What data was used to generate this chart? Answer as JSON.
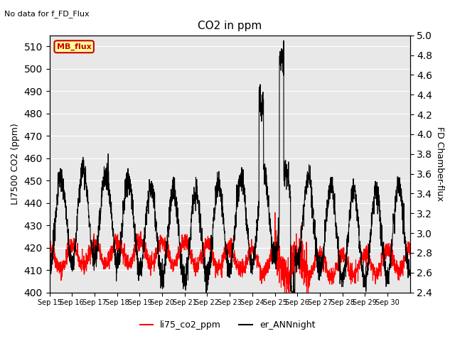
{
  "title": "CO2 in ppm",
  "subtitle": "No data for f_FD_Flux",
  "ylabel_left": "LI7500 CO2 (ppm)",
  "ylabel_right": "FD Chamber-flux",
  "ylim_left": [
    400,
    515
  ],
  "ylim_right": [
    2.4,
    5.0
  ],
  "yticks_left": [
    400,
    410,
    420,
    430,
    440,
    450,
    460,
    470,
    480,
    490,
    500,
    510
  ],
  "yticks_right": [
    2.4,
    2.6,
    2.8,
    3.0,
    3.2,
    3.4,
    3.6,
    3.8,
    4.0,
    4.2,
    4.4,
    4.6,
    4.8,
    5.0
  ],
  "xtick_labels": [
    "Sep 15",
    "Sep 16",
    "Sep 17",
    "Sep 18",
    "Sep 19",
    "Sep 20",
    "Sep 21",
    "Sep 22",
    "Sep 23",
    "Sep 24",
    "Sep 25",
    "Sep 26",
    "Sep 27",
    "Sep 28",
    "Sep 29",
    "Sep 30"
  ],
  "color_red": "#ff0000",
  "color_black": "#000000",
  "background_gray": "#e8e8e8",
  "legend_box_color": "#ffff99",
  "legend_box_border": "#cc0000",
  "legend_box_text": "#cc0000",
  "n_days": 16,
  "seed": 42
}
